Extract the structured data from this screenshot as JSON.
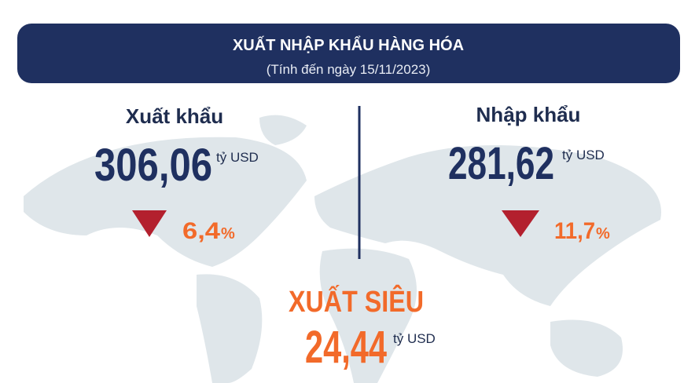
{
  "header": {
    "title": "XUẤT NHẬP KHẨU HÀNG HÓA",
    "subtitle": "(Tính đến ngày 15/11/2023)"
  },
  "export": {
    "label": "Xuất khẩu",
    "value": "306,06",
    "unit": "tỷ USD",
    "change_value": "6,4",
    "change_unit": "%"
  },
  "import": {
    "label": "Nhập khẩu",
    "value": "281,62",
    "unit": "tỷ USD",
    "change_value": "11,7",
    "change_unit": "%"
  },
  "surplus": {
    "label": "XUẤT SIÊU",
    "value": "24,44",
    "unit": "tỷ USD"
  }
}
